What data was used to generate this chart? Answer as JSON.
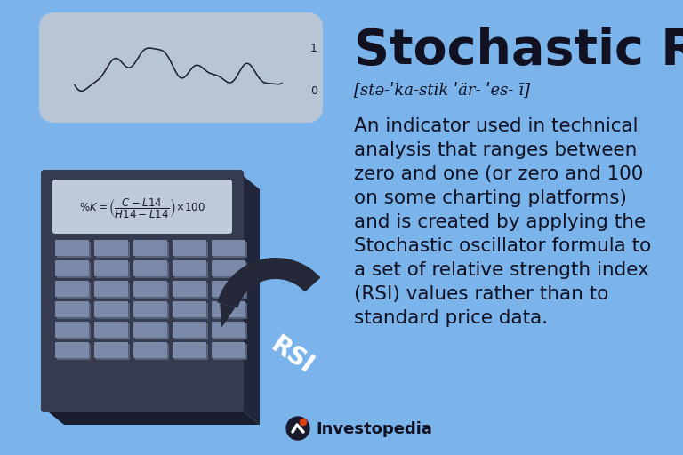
{
  "bg_color": "#7ab4eb",
  "title": "Stochastic RSI",
  "pronunciation": "[stə-ˈka-stik ˈär- ˈes- ī]",
  "body_lines": [
    "An indicator used in technical",
    "analysis that ranges between",
    "zero and one (or zero and 100",
    "on some charting platforms)",
    "and is created by applying the",
    "Stochastic oscillator formula to",
    "a set of relative strength index",
    "(RSI) values rather than to",
    "standard price data."
  ],
  "investopedia_text": "Investopedia",
  "title_fontsize": 40,
  "pronun_fontsize": 13,
  "body_fontsize": 15.5,
  "text_color": "#111122",
  "calc_color": "#363b4f",
  "calc_side_color": "#22263a",
  "calc_bottom_color": "#1a1d2e",
  "screen_color": "#bfc9d8",
  "btn_color": "#7a8aa8",
  "btn_shadow": "#55637a",
  "strip_color": "#b8c5d5",
  "dark": "#252838",
  "white": "#ffffff"
}
